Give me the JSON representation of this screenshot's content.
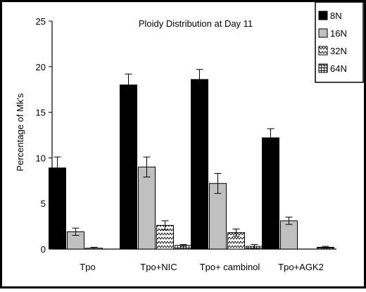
{
  "chart_data": {
    "type": "bar",
    "title": "Ploidy Distribution at Day 11",
    "xlabel": "",
    "ylabel": "Percentage of Mk's",
    "ylim": [
      0,
      25
    ],
    "yticks": [
      0,
      5,
      10,
      15,
      20,
      25
    ],
    "categories": [
      "Tpo",
      "Tpo+NIC",
      "Tpo+ cambinol",
      "Tpo+AGK2"
    ],
    "series": [
      {
        "name": "8N",
        "fill": "solid-black",
        "values": [
          8.9,
          18.0,
          18.6,
          12.2
        ],
        "errors": [
          1.2,
          1.2,
          1.1,
          1.0
        ]
      },
      {
        "name": "16N",
        "fill": "light-gray",
        "values": [
          1.9,
          9.0,
          7.2,
          3.1
        ],
        "errors": [
          0.4,
          1.1,
          1.1,
          0.4
        ]
      },
      {
        "name": "32N",
        "fill": "zigzag",
        "values": [
          0.1,
          2.6,
          1.8,
          0.0
        ],
        "errors": [
          0.1,
          0.5,
          0.4,
          0.0
        ]
      },
      {
        "name": "64N",
        "fill": "crosshatch",
        "values": [
          0.0,
          0.4,
          0.3,
          0.2
        ],
        "errors": [
          0.0,
          0.1,
          0.2,
          0.1
        ]
      }
    ],
    "legend": "top-right",
    "grid": false,
    "colors": {
      "background": "#ffffff",
      "frame": "#000000",
      "dark": "#000000",
      "gray": "#c0c0c0"
    }
  }
}
